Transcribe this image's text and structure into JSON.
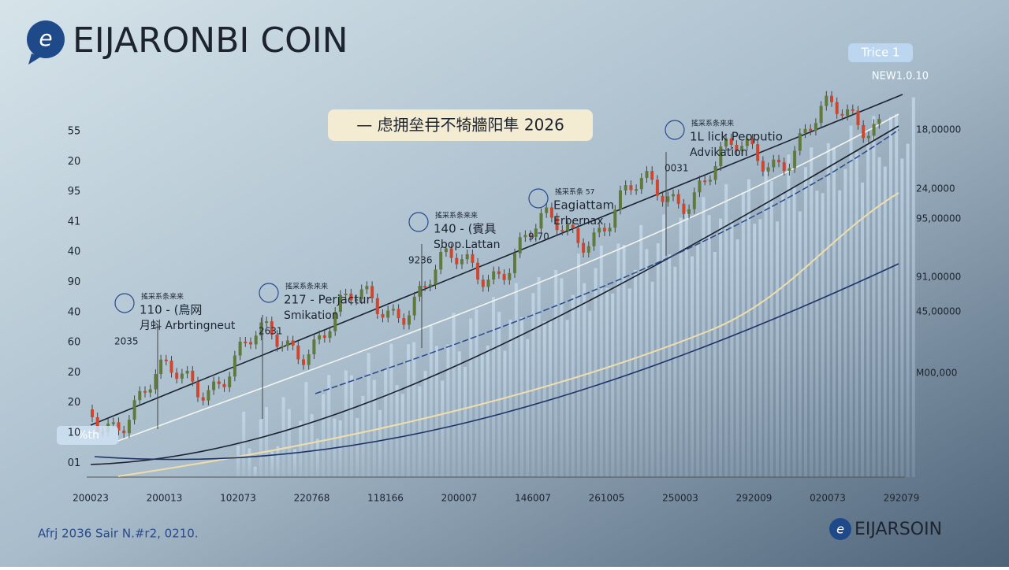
{
  "header": {
    "title": "EIJARONBI COIN"
  },
  "banner": "— 虑拥垒冄不犄牆阳隼 2026",
  "badge": {
    "top": "Trice 1",
    "version": "NEW1.0.10",
    "left": "%th"
  },
  "left_axis": [
    "55",
    "20",
    "95",
    "41",
    "40",
    "90",
    "40",
    "60",
    "20",
    "20",
    "10",
    "01"
  ],
  "right_axis": [
    "18,00000",
    "24,0000",
    "95,00000",
    "91,00000",
    "45,00000",
    "M00,000"
  ],
  "x_axis": [
    "200023",
    "200013",
    "102073",
    "220768",
    "118166",
    "200007",
    "146007",
    "261005",
    "250003",
    "292009",
    "020073",
    "292079"
  ],
  "annotations": [
    {
      "caption": "搖采系条来来",
      "label": "110 - (鳥网",
      "sub": "月蚪 Arbrtingneut",
      "code": "2035"
    },
    {
      "caption": "搖采系条来来",
      "label": "217 - Perjactur",
      "sub": "Smikation",
      "code": "2631"
    },
    {
      "caption": "搖采系条来来",
      "label": "140 - (賓具",
      "sub": "Sbop.Lattan",
      "code": "9236"
    },
    {
      "caption": "搖采系条 57",
      "label": "Eagiattam",
      "sub": "Erbernax",
      "code": "9.70"
    },
    {
      "caption": "搖采系条来来",
      "label": "1L lick Peoputio",
      "sub": "Advikation",
      "code": "0031"
    }
  ],
  "footer": {
    "left": "Afrj 2036 Sair N.#r2, 0210.",
    "right": "EIJARSOIN"
  }
}
